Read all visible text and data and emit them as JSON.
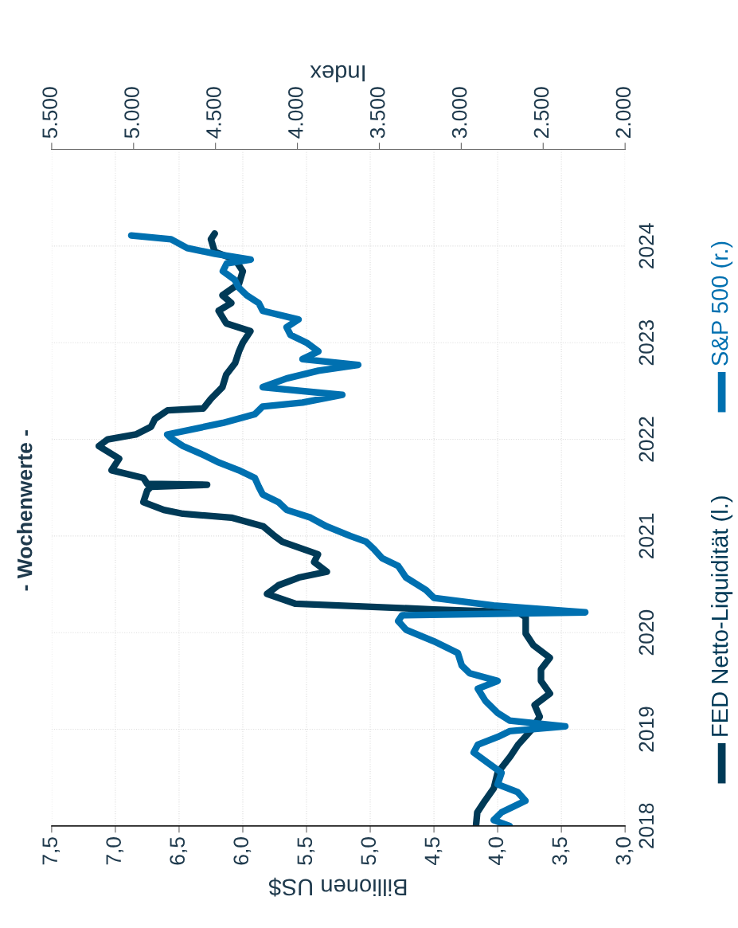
{
  "chart_data": {
    "type": "line",
    "orientation": "horizontal",
    "title": "- Wochenwerte -",
    "xlabel": "Billionen US$",
    "x2label": "Index",
    "xlim": [
      7.5,
      3.0
    ],
    "xticks": [
      {
        "value": 7.5,
        "label": "7,5"
      },
      {
        "value": 7.0,
        "label": "7,0"
      },
      {
        "value": 6.5,
        "label": "6,5"
      },
      {
        "value": 6.0,
        "label": "6,0"
      },
      {
        "value": 5.5,
        "label": "5,5"
      },
      {
        "value": 5.0,
        "label": "5,0"
      },
      {
        "value": 4.5,
        "label": "4,5"
      },
      {
        "value": 4.0,
        "label": "4,0"
      },
      {
        "value": 3.5,
        "label": "3,5"
      },
      {
        "value": 3.0,
        "label": "3,0"
      }
    ],
    "x2lim": [
      5500,
      2000
    ],
    "x2ticks": [
      {
        "value": 5500,
        "label": "5.500"
      },
      {
        "value": 5000,
        "label": "5.000"
      },
      {
        "value": 4500,
        "label": "4.500"
      },
      {
        "value": 4000,
        "label": "4.000"
      },
      {
        "value": 3500,
        "label": "3.500"
      },
      {
        "value": 3000,
        "label": "3.000"
      },
      {
        "value": 2500,
        "label": "2.500"
      },
      {
        "value": 2000,
        "label": "2.000"
      }
    ],
    "ylim": [
      2018,
      2025
    ],
    "yticks": [
      2018,
      2019,
      2020,
      2021,
      2022,
      2023,
      2024
    ],
    "grid": true,
    "legend": "right",
    "line_style": "solid",
    "series": [
      {
        "name": "FED Netto-Liquidität (l.)",
        "color": "#003a57",
        "x": [
          2018.0,
          2018.14,
          2018.26,
          2018.39,
          2018.55,
          2018.72,
          2018.84,
          2019.0,
          2019.13,
          2019.25,
          2019.37,
          2019.5,
          2019.62,
          2019.74,
          2019.87,
          2019.99,
          2020.16,
          2020.21,
          2020.24,
          2020.3,
          2020.4,
          2020.49,
          2020.57,
          2020.63,
          2020.73,
          2020.81,
          2020.94,
          2021.0,
          2021.1,
          2021.19,
          2021.23,
          2021.27,
          2021.35,
          2021.47,
          2021.51,
          2021.53,
          2021.54,
          2021.6,
          2021.68,
          2021.8,
          2021.93,
          2022.0,
          2022.05,
          2022.13,
          2022.21,
          2022.3,
          2022.32,
          2022.42,
          2022.54,
          2022.67,
          2022.79,
          2022.91,
          2023.0,
          2023.12,
          2023.2,
          2023.33,
          2023.41,
          2023.49,
          2023.61,
          2023.74,
          2023.86,
          2023.94,
          2024.07,
          2024.13
        ],
        "values": [
          4.17,
          4.16,
          4.1,
          4.03,
          4.0,
          3.9,
          3.84,
          3.73,
          3.67,
          3.71,
          3.59,
          3.66,
          3.66,
          3.59,
          3.72,
          3.78,
          3.78,
          3.84,
          4.5,
          5.59,
          5.81,
          5.72,
          5.56,
          5.34,
          5.44,
          5.41,
          5.69,
          5.75,
          5.84,
          6.09,
          6.47,
          6.62,
          6.78,
          6.75,
          6.72,
          6.28,
          6.75,
          6.78,
          7.03,
          6.97,
          7.13,
          7.06,
          6.84,
          6.72,
          6.69,
          6.59,
          6.31,
          6.25,
          6.16,
          6.13,
          6.06,
          6.03,
          6.0,
          5.94,
          6.13,
          6.19,
          6.09,
          6.16,
          6.03,
          6.0,
          6.06,
          6.22,
          6.25,
          6.22
        ]
      },
      {
        "name": "S&P 500 (r.)",
        "color": "#0070b0",
        "axis": "x2",
        "x": [
          2018.0,
          2018.06,
          2018.14,
          2018.26,
          2018.35,
          2018.43,
          2018.55,
          2018.67,
          2018.76,
          2018.84,
          2018.92,
          2018.98,
          2019.03,
          2019.09,
          2019.17,
          2019.29,
          2019.42,
          2019.5,
          2019.58,
          2019.66,
          2019.79,
          2019.91,
          2020.03,
          2020.12,
          2020.18,
          2020.21,
          2020.28,
          2020.36,
          2020.44,
          2020.57,
          2020.69,
          2020.77,
          2020.86,
          2020.94,
          2021.0,
          2021.1,
          2021.19,
          2021.27,
          2021.35,
          2021.43,
          2021.51,
          2021.6,
          2021.68,
          2021.76,
          2021.84,
          2021.93,
          2022.01,
          2022.05,
          2022.17,
          2022.26,
          2022.34,
          2022.38,
          2022.46,
          2022.54,
          2022.63,
          2022.71,
          2022.77,
          2022.83,
          2022.91,
          2023.0,
          2023.08,
          2023.16,
          2023.24,
          2023.33,
          2023.41,
          2023.49,
          2023.57,
          2023.65,
          2023.74,
          2023.82,
          2023.86,
          2023.92,
          2023.98,
          2024.07,
          2024.11
        ],
        "values": [
          2705,
          2802,
          2754,
          2608,
          2656,
          2778,
          2754,
          2851,
          2924,
          2899,
          2778,
          2705,
          2365,
          2705,
          2778,
          2851,
          2899,
          2778,
          2948,
          2997,
          3021,
          3167,
          3337,
          3385,
          3361,
          2243,
          2802,
          3167,
          3215,
          3337,
          3385,
          3483,
          3531,
          3580,
          3677,
          3823,
          3920,
          4066,
          4115,
          4212,
          4236,
          4260,
          4358,
          4479,
          4576,
          4698,
          4771,
          4795,
          4455,
          4260,
          4212,
          3969,
          3726,
          4212,
          4066,
          3872,
          3629,
          3969,
          3872,
          3944,
          4042,
          4066,
          3993,
          4212,
          4236,
          4309,
          4358,
          4382,
          4455,
          4431,
          4285,
          4503,
          4673,
          4771,
          5014
        ]
      }
    ]
  }
}
